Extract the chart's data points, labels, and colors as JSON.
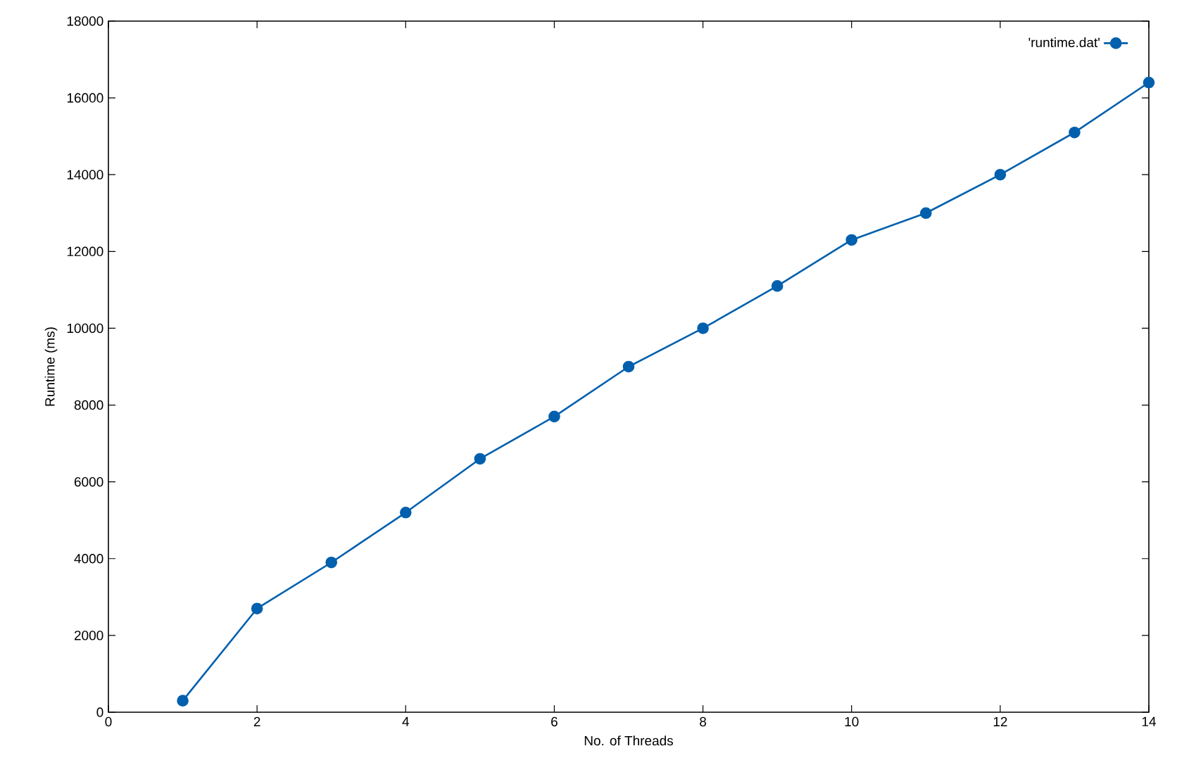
{
  "chart_data": {
    "type": "line",
    "xlabel": "No. of Threads",
    "ylabel": "Runtime (ms)",
    "x": [
      1,
      2,
      3,
      4,
      5,
      6,
      7,
      8,
      9,
      10,
      11,
      12,
      13,
      14
    ],
    "series": [
      {
        "name": "'runtime.dat'",
        "color": "#0060ad",
        "values": [
          300,
          2700,
          3900,
          5200,
          6600,
          7700,
          9000,
          10000,
          11100,
          12300,
          13000,
          14000,
          15100,
          16400
        ]
      }
    ],
    "xlim": [
      0,
      14
    ],
    "ylim": [
      0,
      18000
    ],
    "xticks": [
      0,
      2,
      4,
      6,
      8,
      10,
      12,
      14
    ],
    "yticks": [
      0,
      2000,
      4000,
      6000,
      8000,
      10000,
      12000,
      14000,
      16000,
      18000
    ],
    "grid": false,
    "legend": "top right",
    "marker": "circle",
    "line_style": "solid"
  }
}
